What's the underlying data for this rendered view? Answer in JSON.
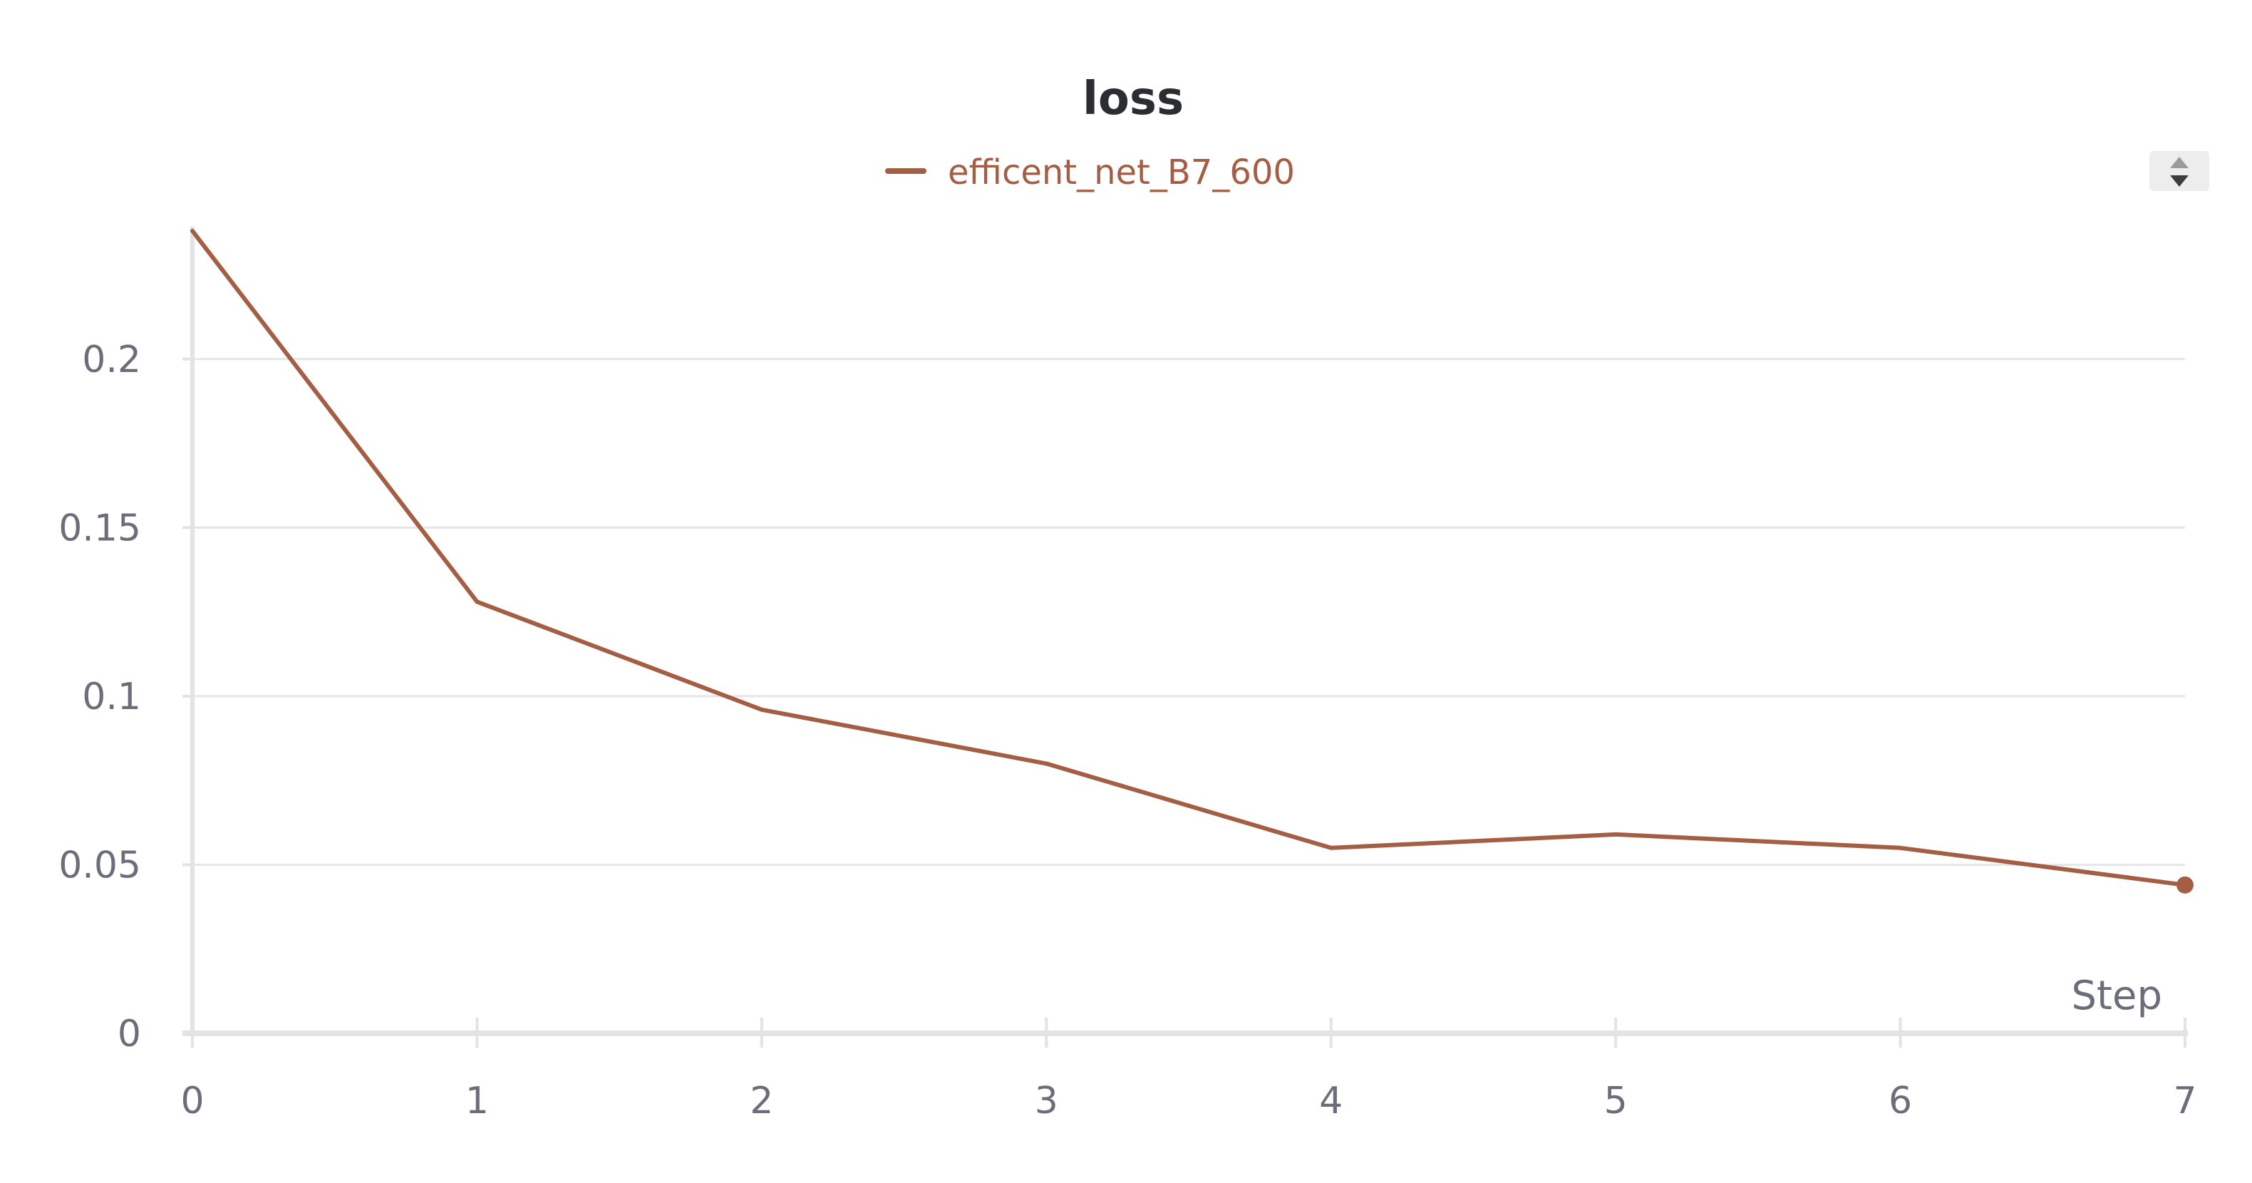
{
  "chart_data": {
    "type": "line",
    "title": "loss",
    "xlabel": "Step",
    "ylabel": "",
    "x": [
      0,
      1,
      2,
      3,
      4,
      5,
      6,
      7
    ],
    "series": [
      {
        "name": "efficent_net_B7_600",
        "color": "#a45e44",
        "values": [
          0.238,
          0.128,
          0.096,
          0.08,
          0.055,
          0.059,
          0.055,
          0.044
        ]
      }
    ],
    "xlim": [
      0,
      7
    ],
    "ylim": [
      0,
      0.238
    ],
    "x_ticks": [
      {
        "value": 0,
        "label": "0"
      },
      {
        "value": 1,
        "label": "1"
      },
      {
        "value": 2,
        "label": "2"
      },
      {
        "value": 3,
        "label": "3"
      },
      {
        "value": 4,
        "label": "4"
      },
      {
        "value": 5,
        "label": "5"
      },
      {
        "value": 6,
        "label": "6"
      },
      {
        "value": 7,
        "label": "7"
      }
    ],
    "y_ticks": [
      {
        "value": 0,
        "label": "0"
      },
      {
        "value": 0.05,
        "label": "0.05"
      },
      {
        "value": 0.1,
        "label": "0.1"
      },
      {
        "value": 0.15,
        "label": "0.15"
      },
      {
        "value": 0.2,
        "label": "0.2"
      }
    ],
    "grid": true,
    "legend_position": "top-center",
    "last_point_marker": true
  },
  "controls": {
    "legend_scroll_icon": "up-down-arrows-icon"
  },
  "colors": {
    "title": "#2b2d33",
    "tick_text": "#6b6e7a",
    "axis": "#e3e3e3",
    "grid": "#e6e6e6",
    "scroll_bg": "#ededed",
    "scroll_arrow_up": "#9b9b9b",
    "scroll_arrow_down": "#3c3c3c"
  }
}
